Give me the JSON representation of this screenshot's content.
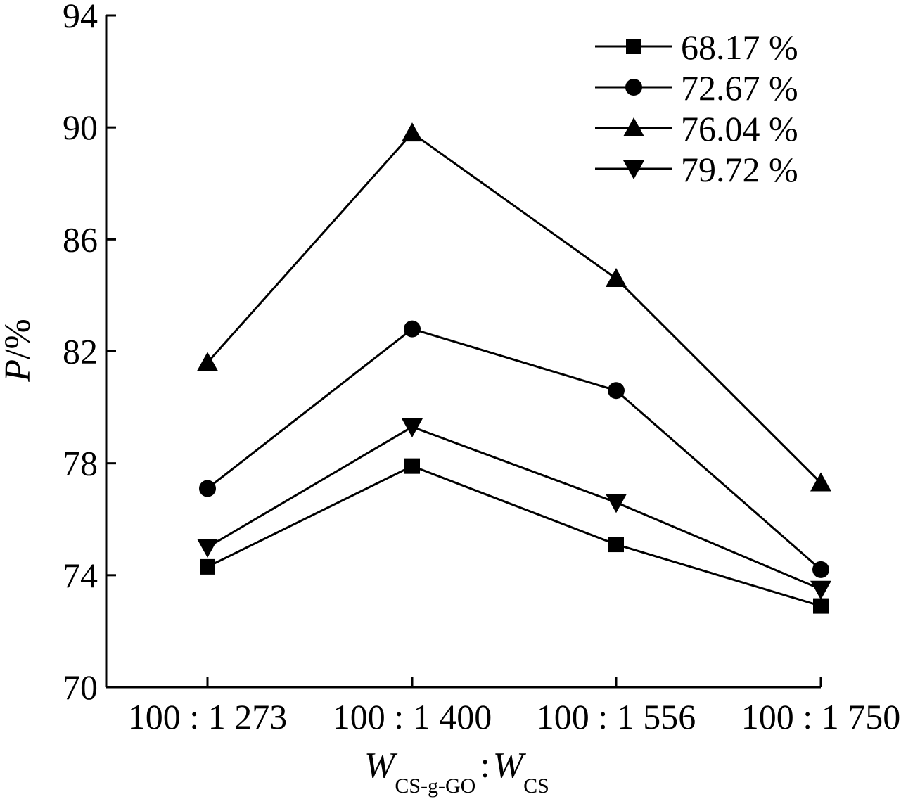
{
  "chart_data": {
    "type": "line",
    "title": "",
    "xlabel": {
      "main_1": "W",
      "sub_1": "CS-g-GO",
      "sep": ":",
      "main_2": "W",
      "sub_2": "CS"
    },
    "ylabel": {
      "italic": "P",
      "rest": "/%"
    },
    "categories": [
      "100 : 1 273",
      "100 : 1 400",
      "100 : 1 556",
      "100 : 1 750"
    ],
    "ylim": [
      70,
      94
    ],
    "yticks": [
      70,
      74,
      78,
      82,
      86,
      90,
      94
    ],
    "grid": false,
    "legend_position": "top-right",
    "series": [
      {
        "name": "68.17 %",
        "marker": "square",
        "values": [
          74.3,
          77.9,
          75.1,
          72.9
        ]
      },
      {
        "name": "72.67 %",
        "marker": "circle",
        "values": [
          77.1,
          82.8,
          80.6,
          74.2
        ]
      },
      {
        "name": "76.04 %",
        "marker": "triangle-up",
        "values": [
          81.6,
          89.8,
          84.6,
          77.3
        ]
      },
      {
        "name": "79.72 %",
        "marker": "triangle-down",
        "values": [
          75.0,
          79.3,
          76.6,
          73.5
        ]
      }
    ],
    "colors": {
      "line": "#000000",
      "marker": "#000000"
    }
  }
}
